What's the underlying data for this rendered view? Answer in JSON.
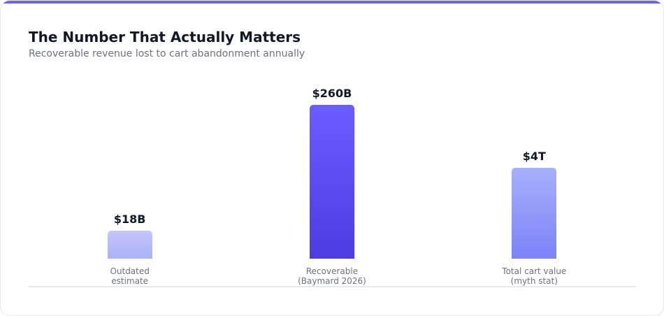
{
  "card": {
    "title": "The Number That Actually Matters",
    "subtitle": "Recoverable revenue lost to cart abandonment annually",
    "items": [
      {
        "value": "$18B",
        "label": "Outdated estimate"
      },
      {
        "value": "$260B",
        "label": "Recoverable (Baymard 2026)"
      },
      {
        "value": "$4T",
        "label": "Total cart value (myth stat)"
      }
    ]
  }
}
